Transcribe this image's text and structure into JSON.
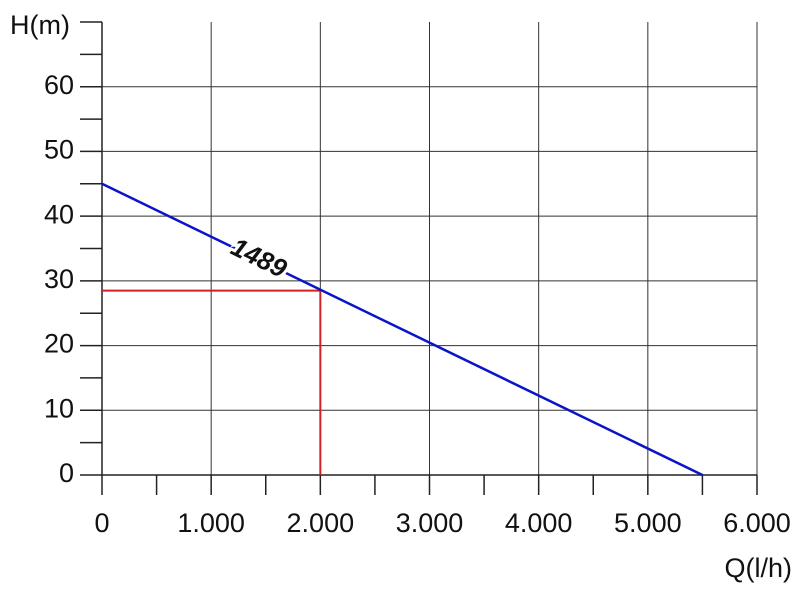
{
  "chart_data": {
    "type": "line",
    "xlabel": "Q(l/h)",
    "ylabel": "H(m)",
    "xlim": [
      0,
      6000
    ],
    "ylim": [
      0,
      70
    ],
    "xticks": [
      0,
      {
        "value": 1000,
        "label": "1.000"
      },
      {
        "value": 2000,
        "label": "2.000"
      },
      {
        "value": 3000,
        "label": "3.000"
      },
      {
        "value": 4000,
        "label": "4.000"
      },
      {
        "value": 5000,
        "label": "5.000"
      },
      {
        "value": 6000,
        "label": "6.000"
      }
    ],
    "yticks": [
      0,
      10,
      20,
      30,
      40,
      50,
      60
    ],
    "grid": true,
    "series": [
      {
        "name": "1489",
        "color": "#0a14c8",
        "x": [
          0,
          5500
        ],
        "values": [
          45,
          0
        ]
      }
    ],
    "operating_point": {
      "x": 2000,
      "y": 28.5,
      "color": "#d42020"
    }
  }
}
